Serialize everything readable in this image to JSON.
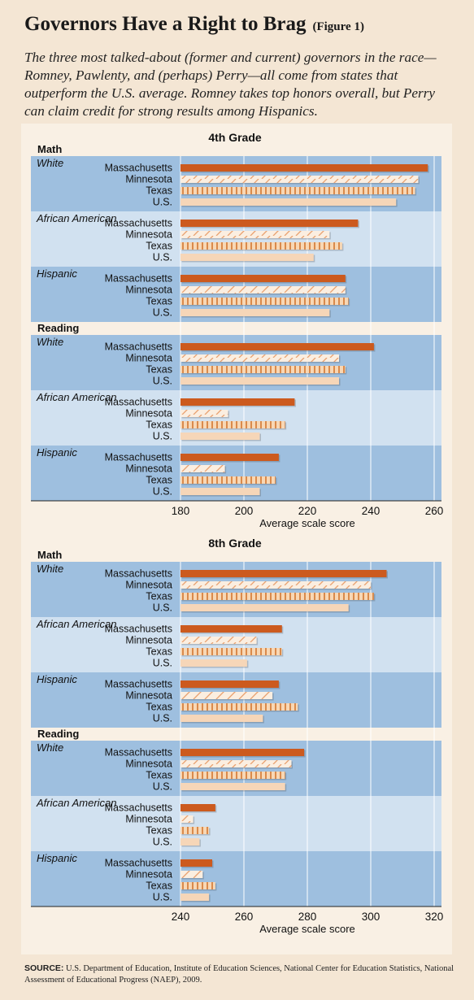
{
  "header": {
    "title": "Governors Have a Right to Brag",
    "figure": "(Figure 1)",
    "subtitle": "The three most talked-about (former and current) governors in the race—Romney, Pawlenty, and (perhaps) Perry—all come from states that outperform the U.S. average. Romney takes top honors overall, but Perry can claim credit for strong results among Hispanics."
  },
  "source": {
    "label": "SOURCE:",
    "text": "U.S. Department of Education, Institute of Education Sciences, National Center for Education Statistics, National Assessment of Educational Progress (NAEP), 2009."
  },
  "colors": {
    "massachusetts": "#cc5a1e",
    "minnesota_hatch": "#e8a06e",
    "texas_stripe": "#d98a4c",
    "us": "#f6d6b8",
    "band_dark": "#9ebfdf",
    "band_light": "#d1e1f0"
  },
  "chart_data": [
    {
      "type": "bar",
      "orientation": "horizontal",
      "title": "4th Grade",
      "xlabel": "Average scale score",
      "xlim": [
        180,
        260
      ],
      "xticks": [
        180,
        200,
        220,
        240,
        260
      ],
      "states": [
        "Massachusetts",
        "Minnesota",
        "Texas",
        "U.S."
      ],
      "sections": [
        {
          "subject": "Math",
          "groups": [
            {
              "name": "White",
              "values": [
                258,
                255,
                254,
                248
              ]
            },
            {
              "name": "African American",
              "values": [
                236,
                227,
                231,
                222
              ]
            },
            {
              "name": "Hispanic",
              "values": [
                232,
                232,
                233,
                227
              ]
            }
          ]
        },
        {
          "subject": "Reading",
          "groups": [
            {
              "name": "White",
              "values": [
                241,
                230,
                232,
                230
              ]
            },
            {
              "name": "African American",
              "values": [
                216,
                195,
                213,
                205
              ]
            },
            {
              "name": "Hispanic",
              "values": [
                211,
                194,
                210,
                205
              ]
            }
          ]
        }
      ]
    },
    {
      "type": "bar",
      "orientation": "horizontal",
      "title": "8th Grade",
      "xlabel": "Average scale score",
      "xlim": [
        240,
        320
      ],
      "xticks": [
        240,
        260,
        280,
        300,
        320
      ],
      "states": [
        "Massachusetts",
        "Minnesota",
        "Texas",
        "U.S."
      ],
      "sections": [
        {
          "subject": "Math",
          "groups": [
            {
              "name": "White",
              "values": [
                305,
                300,
                301,
                293
              ]
            },
            {
              "name": "African American",
              "values": [
                272,
                264,
                272,
                261
              ]
            },
            {
              "name": "Hispanic",
              "values": [
                271,
                269,
                277,
                266
              ]
            }
          ]
        },
        {
          "subject": "Reading",
          "groups": [
            {
              "name": "White",
              "values": [
                279,
                275,
                273,
                273
              ]
            },
            {
              "name": "African American",
              "values": [
                251,
                244,
                249,
                246
              ]
            },
            {
              "name": "Hispanic",
              "values": [
                250,
                247,
                251,
                249
              ]
            }
          ]
        }
      ]
    }
  ]
}
